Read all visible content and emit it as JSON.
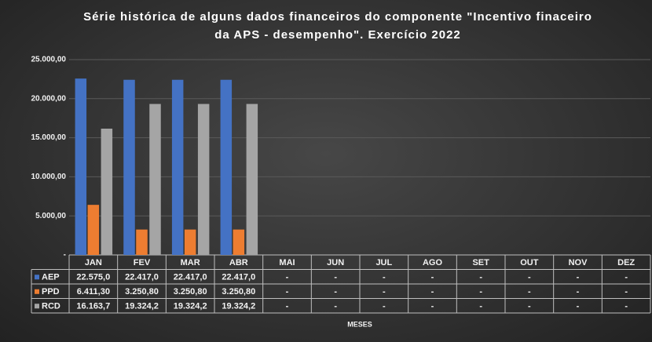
{
  "chart_data": {
    "type": "bar",
    "title": "Série histórica de alguns dados financeiros do componente \"Incentivo finaceiro da APS - desempenho\". Exercício 2022",
    "x_label": "MESES",
    "categories": [
      "JAN",
      "FEV",
      "MAR",
      "ABR",
      "MAI",
      "JUN",
      "JUL",
      "AGO",
      "SET",
      "OUT",
      "NOV",
      "DEZ"
    ],
    "series": [
      {
        "name": "AEP",
        "color": "#4472c4",
        "values": [
          22575.0,
          22417.0,
          22417.0,
          22417.0,
          null,
          null,
          null,
          null,
          null,
          null,
          null,
          null
        ],
        "value_labels": [
          "22.575,0",
          "22.417,0",
          "22.417,0",
          "22.417,0",
          "-",
          "-",
          "-",
          "-",
          "-",
          "-",
          "-",
          "-"
        ]
      },
      {
        "name": "PPD",
        "color": "#ed7d31",
        "values": [
          6411.3,
          3250.8,
          3250.8,
          3250.8,
          null,
          null,
          null,
          null,
          null,
          null,
          null,
          null
        ],
        "value_labels": [
          "6.411,30",
          "3.250,80",
          "3.250,80",
          "3.250,80",
          "-",
          "-",
          "-",
          "-",
          "-",
          "-",
          "-",
          "-"
        ]
      },
      {
        "name": "RCD",
        "color": "#a5a5a5",
        "values": [
          16163.7,
          19324.2,
          19324.2,
          19324.2,
          null,
          null,
          null,
          null,
          null,
          null,
          null,
          null
        ],
        "value_labels": [
          "16.163,7",
          "19.324,2",
          "19.324,2",
          "19.324,2",
          "-",
          "-",
          "-",
          "-",
          "-",
          "-",
          "-",
          "-"
        ]
      }
    ],
    "ylim": [
      0,
      25000
    ],
    "yticks": [
      {
        "value": 0,
        "label": "-"
      },
      {
        "value": 5000,
        "label": "5.000,00"
      },
      {
        "value": 10000,
        "label": "10.000,00"
      },
      {
        "value": 15000,
        "label": "15.000,00"
      },
      {
        "value": 20000,
        "label": "20.000,00"
      },
      {
        "value": 25000,
        "label": "25.000,00"
      }
    ],
    "grid": true
  }
}
